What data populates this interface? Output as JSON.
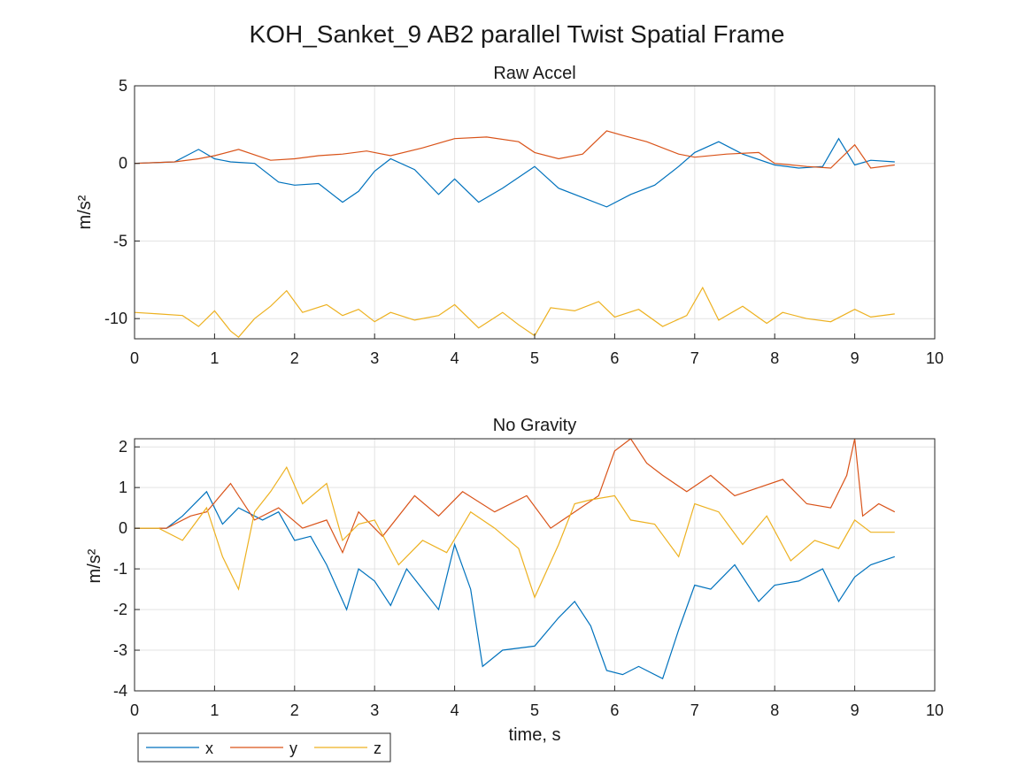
{
  "figure": {
    "title": "KOH_Sanket_9 AB2 parallel Twist Spatial Frame"
  },
  "colors": {
    "x": "#0072BD",
    "y": "#D95319",
    "z": "#EDB120",
    "grid": "#e3e3e3",
    "axis": "#262626"
  },
  "legend": {
    "position": "bottom-left, outside",
    "entries": [
      "x",
      "y",
      "z"
    ]
  },
  "chart_data": [
    {
      "type": "line",
      "title": "Raw Accel",
      "xlabel": "",
      "ylabel": "m/s²",
      "xlim": [
        0,
        10
      ],
      "ylim": [
        -11.3,
        5
      ],
      "xticks": [
        0,
        1,
        2,
        3,
        4,
        5,
        6,
        7,
        8,
        9,
        10
      ],
      "yticks": [
        5,
        0,
        -5,
        -10
      ],
      "grid": true,
      "series": [
        {
          "name": "x",
          "x": [
            0,
            0.5,
            0.8,
            1,
            1.2,
            1.5,
            1.8,
            2,
            2.3,
            2.6,
            2.8,
            3,
            3.2,
            3.5,
            3.8,
            4,
            4.3,
            4.6,
            5,
            5.3,
            5.6,
            5.9,
            6.2,
            6.5,
            6.8,
            7,
            7.3,
            7.6,
            8,
            8.3,
            8.6,
            8.8,
            9,
            9.2,
            9.5
          ],
          "y": [
            0,
            0.1,
            0.9,
            0.3,
            0.1,
            0,
            -1.2,
            -1.4,
            -1.3,
            -2.5,
            -1.8,
            -0.5,
            0.3,
            -0.4,
            -2,
            -1,
            -2.5,
            -1.6,
            -0.2,
            -1.6,
            -2.2,
            -2.8,
            -2,
            -1.4,
            -0.2,
            0.7,
            1.4,
            0.6,
            -0.1,
            -0.3,
            -0.2,
            1.6,
            -0.1,
            0.2,
            0.1
          ]
        },
        {
          "name": "y",
          "x": [
            0,
            0.5,
            0.8,
            1,
            1.3,
            1.7,
            2,
            2.3,
            2.6,
            2.9,
            3.2,
            3.6,
            4,
            4.4,
            4.8,
            5,
            5.3,
            5.6,
            5.9,
            6.1,
            6.4,
            6.8,
            7,
            7.4,
            7.8,
            8,
            8.4,
            8.7,
            9,
            9.2,
            9.5
          ],
          "y": [
            0,
            0.1,
            0.3,
            0.5,
            0.9,
            0.2,
            0.3,
            0.5,
            0.6,
            0.8,
            0.5,
            1,
            1.6,
            1.7,
            1.4,
            0.7,
            0.3,
            0.6,
            2.1,
            1.8,
            1.4,
            0.6,
            0.4,
            0.6,
            0.7,
            0,
            -0.2,
            -0.3,
            1.2,
            -0.3,
            -0.1
          ]
        },
        {
          "name": "z",
          "x": [
            0,
            0.3,
            0.6,
            0.8,
            1,
            1.2,
            1.3,
            1.5,
            1.7,
            1.9,
            2.1,
            2.4,
            2.6,
            2.8,
            3,
            3.2,
            3.5,
            3.8,
            4,
            4.3,
            4.6,
            4.8,
            5,
            5.2,
            5.5,
            5.8,
            6,
            6.3,
            6.6,
            6.9,
            7.1,
            7.3,
            7.6,
            7.9,
            8.1,
            8.4,
            8.7,
            9,
            9.2,
            9.5
          ],
          "y": [
            -9.6,
            -9.7,
            -9.8,
            -10.5,
            -9.5,
            -10.8,
            -11.2,
            -10,
            -9.2,
            -8.2,
            -9.6,
            -9.1,
            -9.8,
            -9.4,
            -10.2,
            -9.6,
            -10.1,
            -9.8,
            -9.1,
            -10.6,
            -9.6,
            -10.4,
            -11.1,
            -9.3,
            -9.5,
            -8.9,
            -9.9,
            -9.4,
            -10.5,
            -9.8,
            -8,
            -10.1,
            -9.2,
            -10.3,
            -9.6,
            -10,
            -10.2,
            -9.4,
            -9.9,
            -9.7
          ]
        }
      ]
    },
    {
      "type": "line",
      "title": "No Gravity",
      "xlabel": "time, s",
      "ylabel": "m/s²",
      "xlim": [
        0,
        10
      ],
      "ylim": [
        -4,
        2.2
      ],
      "xticks": [
        0,
        1,
        2,
        3,
        4,
        5,
        6,
        7,
        8,
        9,
        10
      ],
      "yticks": [
        2,
        1,
        0,
        -1,
        -2,
        -3,
        -4
      ],
      "grid": true,
      "series": [
        {
          "name": "x",
          "x": [
            0,
            0.4,
            0.6,
            0.9,
            1.1,
            1.3,
            1.6,
            1.8,
            2,
            2.2,
            2.4,
            2.65,
            2.8,
            3,
            3.2,
            3.4,
            3.6,
            3.8,
            4,
            4.2,
            4.35,
            4.6,
            5,
            5.3,
            5.5,
            5.7,
            5.9,
            6.1,
            6.3,
            6.6,
            6.8,
            7,
            7.2,
            7.5,
            7.8,
            8,
            8.3,
            8.6,
            8.8,
            9,
            9.2,
            9.5
          ],
          "y": [
            0,
            0,
            0.3,
            0.9,
            0.1,
            0.5,
            0.2,
            0.4,
            -0.3,
            -0.2,
            -0.9,
            -2,
            -1,
            -1.3,
            -1.9,
            -1,
            -1.5,
            -2,
            -0.4,
            -1.5,
            -3.4,
            -3,
            -2.9,
            -2.2,
            -1.8,
            -2.4,
            -3.5,
            -3.6,
            -3.4,
            -3.7,
            -2.5,
            -1.4,
            -1.5,
            -0.9,
            -1.8,
            -1.4,
            -1.3,
            -1,
            -1.8,
            -1.2,
            -0.9,
            -0.7
          ]
        },
        {
          "name": "y",
          "x": [
            0,
            0.4,
            0.7,
            0.9,
            1.2,
            1.5,
            1.8,
            2.1,
            2.4,
            2.6,
            2.8,
            3.1,
            3.5,
            3.8,
            4.1,
            4.5,
            4.9,
            5.2,
            5.5,
            5.8,
            6,
            6.2,
            6.4,
            6.6,
            6.9,
            7.2,
            7.5,
            7.8,
            8.1,
            8.4,
            8.7,
            8.9,
            9,
            9.1,
            9.3,
            9.5
          ],
          "y": [
            0,
            0,
            0.3,
            0.4,
            1.1,
            0.2,
            0.5,
            0,
            0.2,
            -0.6,
            0.4,
            -0.2,
            0.8,
            0.3,
            0.9,
            0.4,
            0.8,
            0,
            0.4,
            0.8,
            1.9,
            2.2,
            1.6,
            1.3,
            0.9,
            1.3,
            0.8,
            1,
            1.2,
            0.6,
            0.5,
            1.3,
            2.2,
            0.3,
            0.6,
            0.4
          ]
        },
        {
          "name": "z",
          "x": [
            0,
            0.3,
            0.6,
            0.9,
            1.1,
            1.3,
            1.5,
            1.7,
            1.9,
            2.1,
            2.4,
            2.6,
            2.8,
            3,
            3.3,
            3.6,
            3.9,
            4.2,
            4.5,
            4.8,
            5,
            5.3,
            5.5,
            5.7,
            6,
            6.2,
            6.5,
            6.8,
            7,
            7.3,
            7.6,
            7.9,
            8.2,
            8.5,
            8.8,
            9,
            9.2,
            9.5
          ],
          "y": [
            0,
            0,
            -0.3,
            0.5,
            -0.7,
            -1.5,
            0.4,
            0.9,
            1.5,
            0.6,
            1.1,
            -0.3,
            0.1,
            0.2,
            -0.9,
            -0.3,
            -0.6,
            0.4,
            0,
            -0.5,
            -1.7,
            -0.4,
            0.6,
            0.7,
            0.8,
            0.2,
            0.1,
            -0.7,
            0.6,
            0.4,
            -0.4,
            0.3,
            -0.8,
            -0.3,
            -0.5,
            0.2,
            -0.1,
            -0.1
          ]
        }
      ]
    }
  ]
}
